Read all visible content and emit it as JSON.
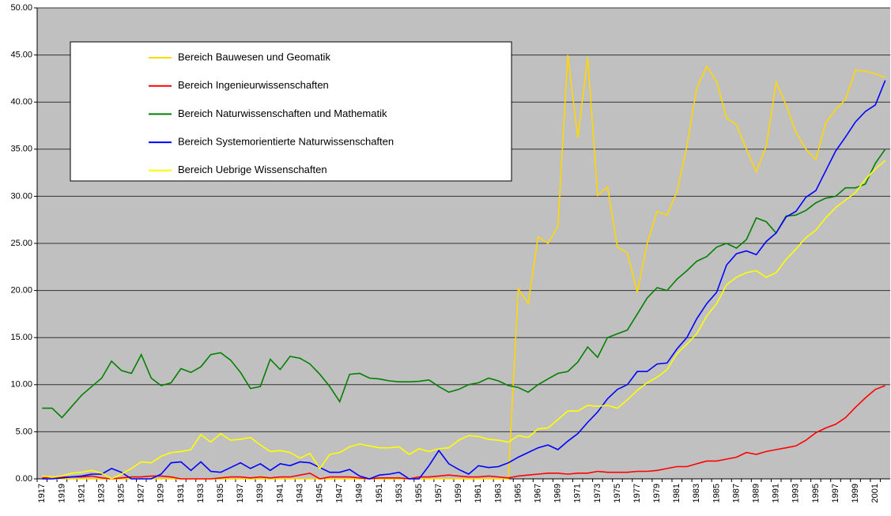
{
  "chart_data": {
    "type": "line",
    "categories": [
      "1917",
      null,
      "1919",
      null,
      "1921",
      null,
      "1923",
      null,
      "1925",
      null,
      "1927",
      null,
      "1929",
      null,
      "1931",
      null,
      "1933",
      null,
      "1935",
      null,
      "1937",
      null,
      "1939",
      null,
      "1941",
      null,
      "1943",
      null,
      "1945",
      null,
      "1947",
      null,
      "1949",
      null,
      "1951",
      null,
      "1953",
      null,
      "1955",
      null,
      "1957",
      null,
      "1959",
      null,
      "1961",
      null,
      "1963",
      null,
      "1965",
      null,
      "1967",
      null,
      "1969",
      null,
      "1971",
      null,
      "1973",
      null,
      "1975",
      null,
      "1977",
      null,
      "1979",
      null,
      "1981",
      null,
      "1983",
      null,
      "1985",
      null,
      "1987",
      null,
      "1989",
      null,
      "1991",
      null,
      "1993",
      null,
      "1995",
      null,
      "1997",
      null,
      "1999",
      null,
      "2001",
      null
    ],
    "series": [
      {
        "name": "Bereich Bauwesen und Geomatik",
        "color": "#ffd800",
        "values": [
          0,
          0,
          0,
          0,
          0,
          0,
          0,
          0,
          0,
          0,
          0,
          0,
          0,
          0,
          0,
          0,
          0,
          0,
          0,
          0,
          0,
          0,
          0,
          0,
          0,
          0,
          0,
          0,
          0,
          0,
          0,
          0,
          0,
          0,
          0,
          0,
          0,
          0,
          0,
          0,
          0,
          0,
          0,
          0,
          0,
          0,
          0,
          0,
          20.2,
          18.6,
          25.7,
          25.0,
          26.8,
          45.0,
          36.2,
          44.8,
          30.1,
          31.0,
          24.6,
          24.0,
          19.8,
          25.0,
          28.4,
          28.0,
          30.5,
          35.3,
          41.5,
          43.8,
          42.2,
          38.3,
          37.6,
          35.0,
          32.6,
          35.3,
          42.1,
          39.7,
          36.8,
          35.0,
          33.9,
          37.8,
          39.2,
          40.3,
          43.4,
          43.3,
          43.0,
          42.6
        ]
      },
      {
        "name": "Bereich Ingenieurwissenschaften",
        "color": "#ff0000",
        "values": [
          0.1,
          0.2,
          0.2,
          0.2,
          0.2,
          0.3,
          0.1,
          0,
          0.1,
          0.2,
          0.2,
          0.3,
          0.3,
          0.2,
          0,
          0,
          0,
          0,
          0.1,
          0.2,
          0.2,
          0.1,
          0.2,
          0.1,
          0.2,
          0.2,
          0.4,
          0.6,
          0,
          0.2,
          0.2,
          0.2,
          0.1,
          0,
          0.1,
          0.1,
          0.1,
          0,
          0.2,
          0.2,
          0.3,
          0.4,
          0.3,
          0.2,
          0.2,
          0.3,
          0.2,
          0.1,
          0.3,
          0.4,
          0.5,
          0.6,
          0.6,
          0.5,
          0.6,
          0.6,
          0.8,
          0.7,
          0.7,
          0.7,
          0.8,
          0.8,
          0.9,
          1.1,
          1.3,
          1.3,
          1.6,
          1.9,
          1.9,
          2.1,
          2.3,
          2.8,
          2.6,
          2.9,
          3.1,
          3.3,
          3.5,
          4.1,
          4.9,
          5.4,
          5.8,
          6.5,
          7.6,
          8.6,
          9.5,
          9.9
        ]
      },
      {
        "name": "Bereich Naturwissenschaften und Mathematik",
        "color": "#008000",
        "values": [
          7.5,
          7.5,
          6.5,
          7.7,
          8.9,
          9.8,
          10.7,
          12.5,
          11.5,
          11.2,
          13.2,
          10.7,
          9.9,
          10.2,
          11.7,
          11.3,
          11.9,
          13.2,
          13.4,
          12.6,
          11.3,
          9.6,
          9.8,
          12.7,
          11.6,
          13.0,
          12.8,
          12.2,
          11.1,
          9.8,
          8.2,
          11.1,
          11.2,
          10.7,
          10.6,
          10.4,
          10.3,
          10.3,
          10.35,
          10.5,
          9.8,
          9.2,
          9.5,
          10.0,
          10.2,
          10.7,
          10.4,
          9.9,
          9.7,
          9.2,
          10.0,
          10.6,
          11.2,
          11.4,
          12.4,
          14.0,
          12.9,
          15.0,
          15.4,
          15.8,
          17.5,
          19.2,
          20.3,
          20.0,
          21.2,
          22.1,
          23.1,
          23.6,
          24.6,
          25.0,
          24.5,
          25.4,
          27.7,
          27.3,
          26.1,
          27.9,
          28.0,
          28.5,
          29.3,
          29.8,
          30.0,
          30.9,
          30.9,
          31.3,
          33.5,
          35.0
        ]
      },
      {
        "name": "Bereich Systemorientierte Naturwissenschaften",
        "color": "#0000ff",
        "values": [
          0,
          0,
          0.1,
          0.2,
          0.3,
          0.5,
          0.5,
          1.1,
          0.7,
          0,
          0,
          0,
          0.5,
          1.7,
          1.8,
          0.9,
          1.8,
          0.8,
          0.7,
          1.2,
          1.7,
          1.1,
          1.6,
          0.9,
          1.6,
          1.4,
          1.8,
          1.7,
          1.2,
          0.7,
          0.7,
          1.0,
          0.3,
          0,
          0.4,
          0.5,
          0.7,
          0,
          0,
          1.4,
          3.0,
          1.6,
          1.0,
          0.5,
          1.4,
          1.2,
          1.3,
          1.7,
          2.3,
          2.8,
          3.3,
          3.6,
          3.1,
          4.0,
          4.8,
          6.0,
          7.1,
          8.5,
          9.5,
          10.0,
          11.4,
          11.4,
          12.2,
          12.3,
          13.8,
          15.0,
          17.0,
          18.6,
          19.8,
          22.7,
          23.9,
          24.2,
          23.8,
          25.2,
          26.1,
          27.8,
          28.4,
          29.9,
          30.6,
          32.7,
          34.8,
          36.3,
          37.9,
          39.0,
          39.7,
          42.3
        ]
      },
      {
        "name": "Bereich Uebrige Wissenschaften",
        "color": "#ffff00",
        "values": [
          0.3,
          0.2,
          0.3,
          0.6,
          0.7,
          0.9,
          0.6,
          0,
          0.5,
          1.1,
          1.8,
          1.7,
          2.4,
          2.8,
          2.9,
          3.1,
          4.7,
          3.9,
          4.8,
          4.1,
          4.2,
          4.4,
          3.6,
          2.9,
          3.0,
          2.8,
          2.2,
          2.7,
          1.1,
          2.6,
          2.8,
          3.4,
          3.7,
          3.5,
          3.3,
          3.3,
          3.4,
          2.6,
          3.2,
          2.9,
          3.2,
          3.3,
          4.1,
          4.6,
          4.5,
          4.2,
          4.1,
          3.9,
          4.6,
          4.4,
          5.3,
          5.4,
          6.3,
          7.2,
          7.2,
          7.8,
          7.7,
          7.8,
          7.5,
          8.4,
          9.4,
          10.2,
          10.8,
          11.6,
          13.3,
          14.3,
          15.4,
          17.3,
          18.6,
          20.6,
          21.4,
          21.9,
          22.1,
          21.4,
          21.9,
          23.3,
          24.4,
          25.6,
          26.4,
          27.7,
          28.8,
          29.6,
          30.4,
          31.8,
          32.9,
          33.8
        ]
      }
    ],
    "ylim": [
      0,
      50
    ],
    "yticks": [
      {
        "value": 0,
        "label": "0.00"
      },
      {
        "value": 5,
        "label": "5.00"
      },
      {
        "value": 10,
        "label": "10.00"
      },
      {
        "value": 15,
        "label": "15.00"
      },
      {
        "value": 20,
        "label": "20.00"
      },
      {
        "value": 25,
        "label": "25.00"
      },
      {
        "value": 30,
        "label": "30.00"
      },
      {
        "value": 35,
        "label": "35.00"
      },
      {
        "value": 40,
        "label": "40.00"
      },
      {
        "value": 45,
        "label": "45.00"
      },
      {
        "value": 50,
        "label": "50.00"
      }
    ],
    "grid": true,
    "legend": "upper-left",
    "background": "#c0c0c0"
  }
}
